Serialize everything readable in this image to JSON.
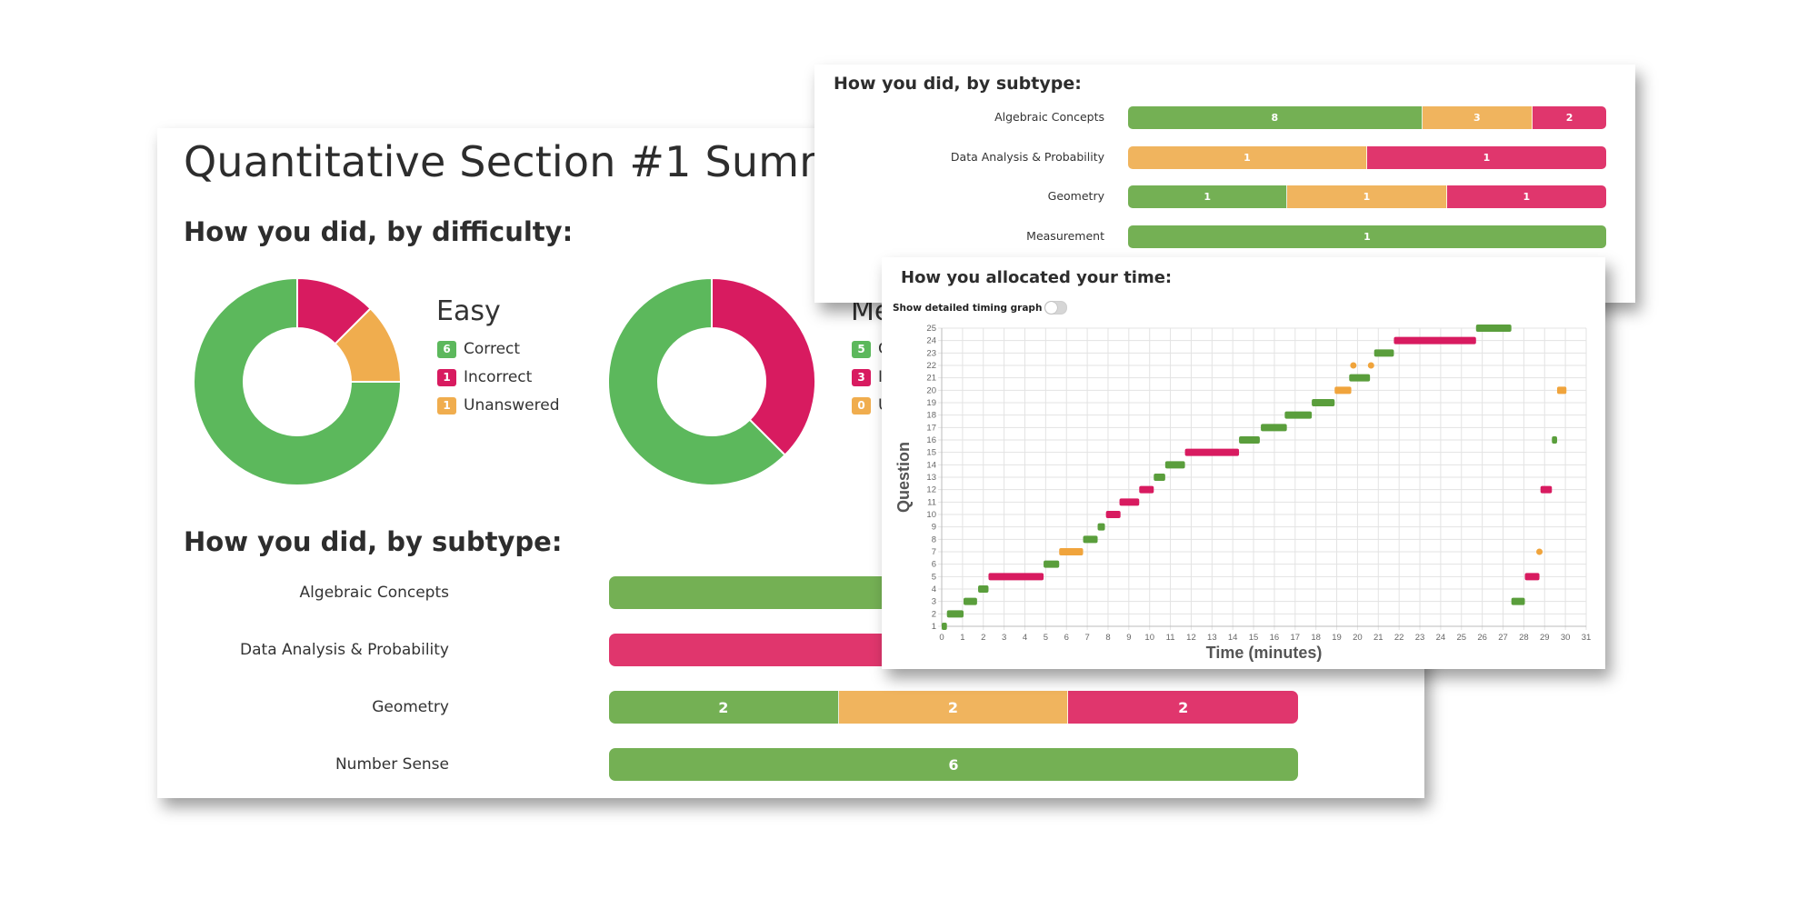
{
  "colors": {
    "correct": "#5cb85c",
    "correct_bar": "#74b054",
    "incorrect": "#d81b60",
    "incorrect_bar": "#e0366d",
    "unanswered": "#f0ad4e",
    "unanswered_bar": "#f0b45e",
    "timing_correct": "#5a9e3c",
    "timing_incorrect": "#d81b60",
    "timing_unanswered": "#f0a43c"
  },
  "main": {
    "title": "Quantitative Section #1 Summary",
    "difficulty_heading": "How you did, by difficulty:",
    "subtype_heading": "How you did, by subtype:",
    "difficulty": [
      {
        "name": "Easy",
        "legend": [
          {
            "count": "6",
            "label": "Correct",
            "status": "correct"
          },
          {
            "count": "1",
            "label": "Incorrect",
            "status": "incorrect"
          },
          {
            "count": "1",
            "label": "Unanswered",
            "status": "unanswered"
          }
        ]
      },
      {
        "name": "Me",
        "legend": [
          {
            "count": "5",
            "label": "C",
            "status": "correct"
          },
          {
            "count": "3",
            "label": "In",
            "status": "incorrect"
          },
          {
            "count": "0",
            "label": "U",
            "status": "unanswered"
          }
        ]
      }
    ],
    "subtypes": [
      {
        "label": "Algebraic Concepts",
        "segments": [
          {
            "status": "correct",
            "value": 8
          }
        ]
      },
      {
        "label": "Data Analysis & Probability",
        "segments": [
          {
            "status": "incorrect",
            "value": 1
          }
        ]
      },
      {
        "label": "Geometry",
        "segments": [
          {
            "status": "correct",
            "value": 2
          },
          {
            "status": "unanswered",
            "value": 2
          },
          {
            "status": "incorrect",
            "value": 2
          }
        ]
      },
      {
        "label": "Number Sense",
        "segments": [
          {
            "status": "correct",
            "value": 6
          }
        ]
      }
    ]
  },
  "top_card": {
    "heading": "How you did, by subtype:",
    "subtypes": [
      {
        "label": "Algebraic Concepts",
        "segments": [
          {
            "status": "correct",
            "value": 8
          },
          {
            "status": "unanswered",
            "value": 3
          },
          {
            "status": "incorrect",
            "value": 2
          }
        ]
      },
      {
        "label": "Data Analysis & Probability",
        "segments": [
          {
            "status": "unanswered",
            "value": 1
          },
          {
            "status": "incorrect",
            "value": 1
          }
        ]
      },
      {
        "label": "Geometry",
        "segments": [
          {
            "status": "correct",
            "value": 1
          },
          {
            "status": "unanswered",
            "value": 1
          },
          {
            "status": "incorrect",
            "value": 1
          }
        ]
      },
      {
        "label": "Measurement",
        "segments": [
          {
            "status": "correct",
            "value": 1
          }
        ]
      }
    ]
  },
  "timing": {
    "heading": "How you allocated your time:",
    "toggle_label": "Show detailed timing graph",
    "toggle_on": false
  },
  "chart_data": [
    {
      "type": "pie",
      "title": "Easy",
      "categories": [
        "Correct",
        "Incorrect",
        "Unanswered"
      ],
      "values": [
        6,
        1,
        1
      ]
    },
    {
      "type": "pie",
      "title": "Medium",
      "categories": [
        "Correct",
        "Incorrect",
        "Unanswered"
      ],
      "values": [
        5,
        3,
        0
      ]
    },
    {
      "type": "bar",
      "title": "How you did, by subtype (visible portion)",
      "orientation": "horizontal-stacked",
      "categories": [
        "Algebraic Concepts",
        "Data Analysis & Probability",
        "Geometry",
        "Number Sense"
      ],
      "series": [
        {
          "name": "Correct",
          "values": [
            8,
            null,
            2,
            6
          ]
        },
        {
          "name": "Unanswered",
          "values": [
            null,
            null,
            2,
            0
          ]
        },
        {
          "name": "Incorrect",
          "values": [
            null,
            null,
            2,
            0
          ]
        }
      ]
    },
    {
      "type": "bar",
      "title": "How you did, by subtype",
      "orientation": "horizontal-stacked",
      "categories": [
        "Algebraic Concepts",
        "Data Analysis & Probability",
        "Geometry",
        "Measurement"
      ],
      "series": [
        {
          "name": "Correct",
          "values": [
            8,
            0,
            1,
            1
          ]
        },
        {
          "name": "Unanswered",
          "values": [
            3,
            1,
            1,
            0
          ]
        },
        {
          "name": "Incorrect",
          "values": [
            2,
            1,
            1,
            0
          ]
        }
      ]
    },
    {
      "type": "scatter",
      "subtype": "gantt",
      "title": "How you allocated your time",
      "xlabel": "Time (minutes)",
      "ylabel": "Question",
      "xlim": [
        0,
        31
      ],
      "ylim": [
        1,
        25
      ],
      "x_ticks": [
        0,
        1,
        2,
        3,
        4,
        5,
        6,
        7,
        8,
        9,
        10,
        11,
        12,
        13,
        14,
        15,
        16,
        17,
        18,
        19,
        20,
        21,
        22,
        23,
        24,
        25,
        26,
        27,
        28,
        29,
        30,
        31
      ],
      "y_ticks": [
        1,
        2,
        3,
        4,
        5,
        6,
        7,
        8,
        9,
        10,
        11,
        12,
        13,
        14,
        15,
        16,
        17,
        18,
        19,
        20,
        21,
        22,
        23,
        24,
        25
      ],
      "grid": true,
      "segments": [
        {
          "question": 1,
          "start": 0.0,
          "end": 0.25,
          "status": "correct"
        },
        {
          "question": 2,
          "start": 0.25,
          "end": 1.05,
          "status": "correct"
        },
        {
          "question": 3,
          "start": 1.05,
          "end": 1.7,
          "status": "correct"
        },
        {
          "question": 4,
          "start": 1.75,
          "end": 2.25,
          "status": "correct"
        },
        {
          "question": 5,
          "start": 2.25,
          "end": 4.9,
          "status": "incorrect"
        },
        {
          "question": 6,
          "start": 4.9,
          "end": 5.65,
          "status": "correct"
        },
        {
          "question": 7,
          "start": 5.65,
          "end": 6.8,
          "status": "unanswered"
        },
        {
          "question": 8,
          "start": 6.8,
          "end": 7.5,
          "status": "correct"
        },
        {
          "question": 9,
          "start": 7.5,
          "end": 7.85,
          "status": "correct"
        },
        {
          "question": 10,
          "start": 7.9,
          "end": 8.6,
          "status": "incorrect"
        },
        {
          "question": 11,
          "start": 8.55,
          "end": 9.5,
          "status": "incorrect"
        },
        {
          "question": 12,
          "start": 9.5,
          "end": 10.2,
          "status": "incorrect"
        },
        {
          "question": 13,
          "start": 10.2,
          "end": 10.75,
          "status": "correct"
        },
        {
          "question": 14,
          "start": 10.75,
          "end": 11.7,
          "status": "correct"
        },
        {
          "question": 15,
          "start": 11.7,
          "end": 14.3,
          "status": "incorrect"
        },
        {
          "question": 16,
          "start": 14.3,
          "end": 15.3,
          "status": "correct"
        },
        {
          "question": 17,
          "start": 15.35,
          "end": 16.6,
          "status": "correct"
        },
        {
          "question": 18,
          "start": 16.5,
          "end": 17.8,
          "status": "correct"
        },
        {
          "question": 19,
          "start": 17.8,
          "end": 18.9,
          "status": "correct"
        },
        {
          "question": 20,
          "start": 18.9,
          "end": 19.7,
          "status": "unanswered"
        },
        {
          "question": 21,
          "start": 19.6,
          "end": 20.6,
          "status": "correct"
        },
        {
          "question": 22,
          "start": 19.8,
          "end": 19.8,
          "status": "unanswered"
        },
        {
          "question": 22,
          "start": 20.65,
          "end": 20.65,
          "status": "unanswered"
        },
        {
          "question": 23,
          "start": 20.8,
          "end": 21.75,
          "status": "correct"
        },
        {
          "question": 24,
          "start": 21.75,
          "end": 25.7,
          "status": "incorrect"
        },
        {
          "question": 25,
          "start": 25.7,
          "end": 27.4,
          "status": "correct"
        },
        {
          "question": 3,
          "start": 27.4,
          "end": 28.05,
          "status": "correct"
        },
        {
          "question": 5,
          "start": 28.05,
          "end": 28.75,
          "status": "incorrect"
        },
        {
          "question": 7,
          "start": 28.75,
          "end": 28.75,
          "status": "unanswered"
        },
        {
          "question": 12,
          "start": 28.8,
          "end": 29.35,
          "status": "incorrect"
        },
        {
          "question": 16,
          "start": 29.35,
          "end": 29.6,
          "status": "correct"
        },
        {
          "question": 20,
          "start": 29.6,
          "end": 30.05,
          "status": "unanswered"
        }
      ]
    }
  ]
}
